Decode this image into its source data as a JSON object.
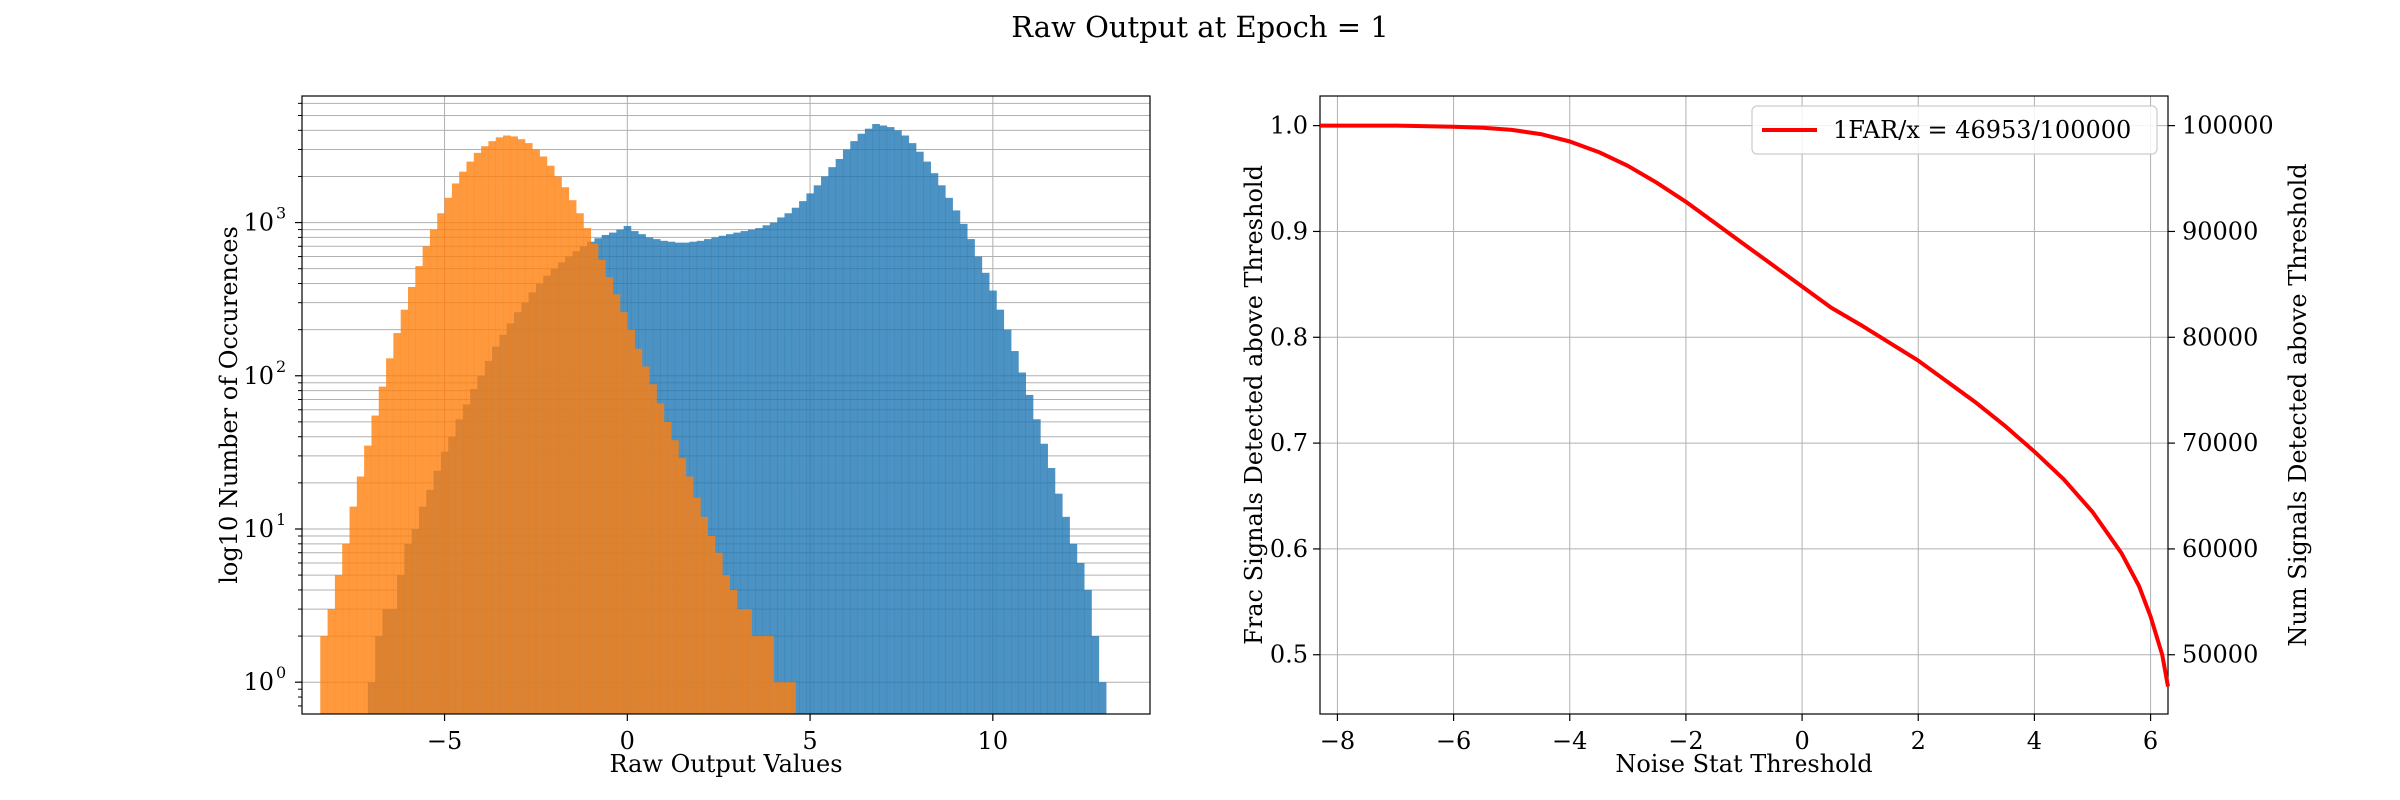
{
  "suptitle": "Raw Output at Epoch = 1",
  "colors": {
    "blue": "#1f77b4",
    "orange": "#ff7f0e",
    "red": "#ff0000",
    "grid": "#b0b0b0"
  },
  "chart_data": [
    {
      "type": "bar",
      "subtype": "histogram",
      "xlabel": "Raw Output Values",
      "ylabel": "log10 Number of Occurences",
      "yscale": "log",
      "xlim": [
        -8.9,
        14.3
      ],
      "ylim": [
        0.62,
        6700
      ],
      "grid": "both-major-minor-y",
      "xticks": [
        -5,
        0,
        5,
        10
      ],
      "xtick_labels": [
        "−5",
        "0",
        "5",
        "10"
      ],
      "yticks": [
        1,
        10,
        100,
        1000
      ],
      "ytick_labels": [
        "10",
        "10",
        "10",
        "10"
      ],
      "ytick_exponents": [
        "0",
        "1",
        "2",
        "3"
      ],
      "series": [
        {
          "name": "",
          "color": "#1f77b4",
          "opacity": 0.8,
          "bins": [
            [
              -7.0,
              1
            ],
            [
              -6.8,
              2
            ],
            [
              -6.6,
              3
            ],
            [
              -6.4,
              3
            ],
            [
              -6.2,
              5
            ],
            [
              -6.0,
              8
            ],
            [
              -5.8,
              10
            ],
            [
              -5.6,
              14
            ],
            [
              -5.4,
              18
            ],
            [
              -5.2,
              24
            ],
            [
              -5.0,
              32
            ],
            [
              -4.8,
              40
            ],
            [
              -4.6,
              52
            ],
            [
              -4.4,
              65
            ],
            [
              -4.2,
              82
            ],
            [
              -4.0,
              100
            ],
            [
              -3.8,
              125
            ],
            [
              -3.6,
              155
            ],
            [
              -3.4,
              185
            ],
            [
              -3.2,
              220
            ],
            [
              -3.0,
              260
            ],
            [
              -2.8,
              300
            ],
            [
              -2.6,
              350
            ],
            [
              -2.4,
              400
            ],
            [
              -2.2,
              450
            ],
            [
              -2.0,
              500
            ],
            [
              -1.8,
              550
            ],
            [
              -1.6,
              600
            ],
            [
              -1.4,
              650
            ],
            [
              -1.2,
              700
            ],
            [
              -1.0,
              750
            ],
            [
              -0.8,
              790
            ],
            [
              -0.6,
              830
            ],
            [
              -0.4,
              860
            ],
            [
              -0.2,
              900
            ],
            [
              0.0,
              950
            ],
            [
              0.2,
              880
            ],
            [
              0.4,
              840
            ],
            [
              0.6,
              800
            ],
            [
              0.8,
              780
            ],
            [
              1.0,
              760
            ],
            [
              1.2,
              750
            ],
            [
              1.4,
              740
            ],
            [
              1.6,
              740
            ],
            [
              1.8,
              750
            ],
            [
              2.0,
              760
            ],
            [
              2.2,
              780
            ],
            [
              2.4,
              800
            ],
            [
              2.6,
              820
            ],
            [
              2.8,
              840
            ],
            [
              3.0,
              860
            ],
            [
              3.2,
              880
            ],
            [
              3.4,
              900
            ],
            [
              3.6,
              920
            ],
            [
              3.8,
              960
            ],
            [
              4.0,
              1000
            ],
            [
              4.2,
              1080
            ],
            [
              4.4,
              1150
            ],
            [
              4.6,
              1250
            ],
            [
              4.8,
              1380
            ],
            [
              5.0,
              1550
            ],
            [
              5.2,
              1750
            ],
            [
              5.4,
              2000
            ],
            [
              5.6,
              2300
            ],
            [
              5.8,
              2600
            ],
            [
              6.0,
              3000
            ],
            [
              6.2,
              3400
            ],
            [
              6.4,
              3800
            ],
            [
              6.6,
              4100
            ],
            [
              6.8,
              4400
            ],
            [
              7.0,
              4300
            ],
            [
              7.2,
              4200
            ],
            [
              7.4,
              4000
            ],
            [
              7.6,
              3700
            ],
            [
              7.8,
              3300
            ],
            [
              8.0,
              2900
            ],
            [
              8.2,
              2500
            ],
            [
              8.4,
              2100
            ],
            [
              8.6,
              1750
            ],
            [
              8.8,
              1450
            ],
            [
              9.0,
              1200
            ],
            [
              9.2,
              980
            ],
            [
              9.4,
              780
            ],
            [
              9.6,
              600
            ],
            [
              9.8,
              470
            ],
            [
              10.0,
              360
            ],
            [
              10.2,
              270
            ],
            [
              10.4,
              200
            ],
            [
              10.6,
              145
            ],
            [
              10.8,
              105
            ],
            [
              11.0,
              75
            ],
            [
              11.2,
              52
            ],
            [
              11.4,
              36
            ],
            [
              11.6,
              25
            ],
            [
              11.8,
              17
            ],
            [
              12.0,
              12
            ],
            [
              12.2,
              8
            ],
            [
              12.4,
              6
            ],
            [
              12.6,
              4
            ],
            [
              12.8,
              2
            ],
            [
              13.0,
              1
            ]
          ]
        },
        {
          "name": "",
          "color": "#ff7f0e",
          "opacity": 0.8,
          "bins": [
            [
              -8.3,
              2
            ],
            [
              -8.1,
              3
            ],
            [
              -7.9,
              5
            ],
            [
              -7.7,
              8
            ],
            [
              -7.5,
              14
            ],
            [
              -7.3,
              22
            ],
            [
              -7.1,
              35
            ],
            [
              -6.9,
              55
            ],
            [
              -6.7,
              85
            ],
            [
              -6.5,
              130
            ],
            [
              -6.3,
              190
            ],
            [
              -6.1,
              270
            ],
            [
              -5.9,
              380
            ],
            [
              -5.7,
              520
            ],
            [
              -5.5,
              700
            ],
            [
              -5.3,
              900
            ],
            [
              -5.1,
              1150
            ],
            [
              -4.9,
              1450
            ],
            [
              -4.7,
              1800
            ],
            [
              -4.5,
              2150
            ],
            [
              -4.3,
              2500
            ],
            [
              -4.1,
              2850
            ],
            [
              -3.9,
              3150
            ],
            [
              -3.7,
              3400
            ],
            [
              -3.5,
              3600
            ],
            [
              -3.3,
              3700
            ],
            [
              -3.1,
              3650
            ],
            [
              -2.9,
              3500
            ],
            [
              -2.7,
              3300
            ],
            [
              -2.5,
              3000
            ],
            [
              -2.3,
              2700
            ],
            [
              -2.1,
              2350
            ],
            [
              -1.9,
              2000
            ],
            [
              -1.7,
              1700
            ],
            [
              -1.5,
              1400
            ],
            [
              -1.3,
              1150
            ],
            [
              -1.1,
              920
            ],
            [
              -0.9,
              730
            ],
            [
              -0.7,
              570
            ],
            [
              -0.5,
              440
            ],
            [
              -0.3,
              340
            ],
            [
              -0.1,
              260
            ],
            [
              0.1,
              200
            ],
            [
              0.3,
              150
            ],
            [
              0.5,
              115
            ],
            [
              0.7,
              88
            ],
            [
              0.9,
              66
            ],
            [
              1.1,
              50
            ],
            [
              1.3,
              38
            ],
            [
              1.5,
              29
            ],
            [
              1.7,
              22
            ],
            [
              1.9,
              16
            ],
            [
              2.1,
              12
            ],
            [
              2.3,
              9
            ],
            [
              2.5,
              7
            ],
            [
              2.7,
              5
            ],
            [
              2.9,
              4
            ],
            [
              3.1,
              3
            ],
            [
              3.3,
              3
            ],
            [
              3.5,
              2
            ],
            [
              3.7,
              2
            ],
            [
              3.9,
              2
            ],
            [
              4.1,
              1
            ],
            [
              4.3,
              1
            ],
            [
              4.5,
              1
            ]
          ]
        }
      ]
    },
    {
      "type": "line",
      "xlabel": "Noise Stat Threshold",
      "ylabel": "Frac Signals Detected above Threshold",
      "ylabel_right": "Num Signals Detected above Threshold",
      "xlim": [
        -8.3,
        6.3
      ],
      "ylim": [
        0.444,
        1.028
      ],
      "ylim_right": [
        44400,
        102800
      ],
      "grid": true,
      "xticks": [
        -8,
        -6,
        -4,
        -2,
        0,
        2,
        4,
        6
      ],
      "xtick_labels": [
        "−8",
        "−6",
        "−4",
        "−2",
        "0",
        "2",
        "4",
        "6"
      ],
      "yticks": [
        0.5,
        0.6,
        0.7,
        0.8,
        0.9,
        1.0
      ],
      "ytick_labels": [
        "0.5",
        "0.6",
        "0.7",
        "0.8",
        "0.9",
        "1.0"
      ],
      "yticks_right": [
        50000,
        60000,
        70000,
        80000,
        90000,
        100000
      ],
      "ytick_labels_right": [
        "50000",
        "60000",
        "70000",
        "80000",
        "90000",
        "100000"
      ],
      "legend_position": "top-right",
      "series": [
        {
          "name": "1FAR/x = 46953/100000",
          "color": "#ff0000",
          "x": [
            -8.3,
            -7,
            -6,
            -5.5,
            -5,
            -4.5,
            -4,
            -3.5,
            -3,
            -2.5,
            -2,
            -1.5,
            -1,
            -0.5,
            0,
            0.5,
            1,
            1.5,
            2,
            2.5,
            3,
            3.5,
            4,
            4.5,
            5,
            5.5,
            5.8,
            6.0,
            6.2,
            6.3
          ],
          "y": [
            1.0,
            1.0,
            0.999,
            0.998,
            0.996,
            0.992,
            0.985,
            0.975,
            0.962,
            0.946,
            0.928,
            0.908,
            0.888,
            0.868,
            0.848,
            0.828,
            0.812,
            0.795,
            0.778,
            0.758,
            0.738,
            0.716,
            0.692,
            0.666,
            0.635,
            0.596,
            0.565,
            0.536,
            0.5,
            0.47
          ]
        }
      ]
    }
  ]
}
